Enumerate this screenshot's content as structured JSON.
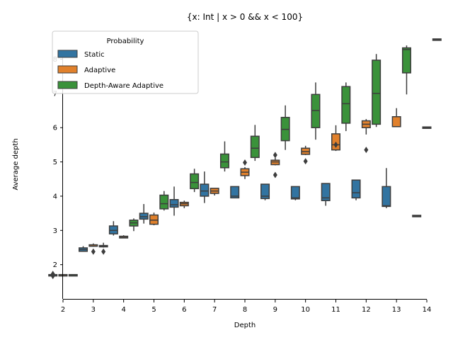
{
  "chart_data": {
    "type": "box",
    "title": "{x: Int | x > 0 && x < 100}",
    "xlabel": "Depth",
    "ylabel": "Average depth",
    "categories": [
      "2",
      "3",
      "4",
      "5",
      "6",
      "7",
      "8",
      "9",
      "10",
      "11",
      "12",
      "13",
      "14"
    ],
    "ylim": [
      1.0,
      8.9
    ],
    "yticks": [
      2,
      3,
      4,
      5,
      6,
      7,
      8
    ],
    "grid": false,
    "legend": {
      "title": "Probability",
      "placement": "top-left"
    },
    "series": [
      {
        "name": "Static",
        "color": "#3274a1",
        "boxes": [
          {
            "category": "2",
            "min": 1.68,
            "q1": 1.68,
            "median": 1.68,
            "q3": 1.69,
            "max": 1.69,
            "outliers": [
              1.73,
              1.67
            ]
          },
          {
            "category": "3",
            "min": 2.38,
            "q1": 2.39,
            "median": 2.44,
            "q3": 2.49,
            "max": 2.54,
            "outliers": []
          },
          {
            "category": "4",
            "min": 2.85,
            "q1": 2.9,
            "median": 3.0,
            "q3": 3.13,
            "max": 3.27,
            "outliers": []
          },
          {
            "category": "5",
            "min": 3.2,
            "q1": 3.33,
            "median": 3.4,
            "q3": 3.5,
            "max": 3.77,
            "outliers": []
          },
          {
            "category": "6",
            "min": 3.43,
            "q1": 3.68,
            "median": 3.75,
            "q3": 3.9,
            "max": 4.28,
            "outliers": []
          },
          {
            "category": "7",
            "min": 3.8,
            "q1": 4.0,
            "median": 4.15,
            "q3": 4.35,
            "max": 4.72,
            "outliers": []
          },
          {
            "category": "8",
            "min": 3.95,
            "q1": 3.95,
            "median": 4.0,
            "q3": 4.28,
            "max": 4.28,
            "outliers": []
          },
          {
            "category": "9",
            "min": 3.88,
            "q1": 3.93,
            "median": 4.0,
            "q3": 4.35,
            "max": 4.35,
            "outliers": []
          },
          {
            "category": "10",
            "min": 3.88,
            "q1": 3.92,
            "median": 3.95,
            "q3": 4.28,
            "max": 4.28,
            "outliers": []
          },
          {
            "category": "11",
            "min": 3.72,
            "q1": 3.87,
            "median": 3.95,
            "q3": 4.37,
            "max": 4.37,
            "outliers": []
          },
          {
            "category": "12",
            "min": 3.88,
            "q1": 3.95,
            "median": 4.1,
            "q3": 4.47,
            "max": 4.47,
            "outliers": []
          },
          {
            "category": "13",
            "min": 3.65,
            "q1": 3.7,
            "median": 3.72,
            "q3": 4.28,
            "max": 4.82,
            "outliers": []
          },
          {
            "category": "14",
            "min": 3.42,
            "q1": 3.42,
            "median": 3.42,
            "q3": 3.42,
            "max": 3.42,
            "outliers": []
          }
        ]
      },
      {
        "name": "Adaptive",
        "color": "#e1812c",
        "boxes": [
          {
            "category": "2",
            "min": 1.68,
            "q1": 1.68,
            "median": 1.68,
            "q3": 1.69,
            "max": 1.69,
            "outliers": []
          },
          {
            "category": "3",
            "min": 2.52,
            "q1": 2.53,
            "median": 2.54,
            "q3": 2.56,
            "max": 2.62,
            "outliers": [
              2.38
            ]
          },
          {
            "category": "4",
            "min": 2.77,
            "q1": 2.78,
            "median": 2.8,
            "q3": 2.83,
            "max": 2.86,
            "outliers": []
          },
          {
            "category": "5",
            "min": 3.15,
            "q1": 3.18,
            "median": 3.3,
            "q3": 3.45,
            "max": 3.52,
            "outliers": []
          },
          {
            "category": "6",
            "min": 3.65,
            "q1": 3.72,
            "median": 3.78,
            "q3": 3.82,
            "max": 3.87,
            "outliers": []
          },
          {
            "category": "7",
            "min": 4.02,
            "q1": 4.08,
            "median": 4.15,
            "q3": 4.23,
            "max": 4.23,
            "outliers": []
          },
          {
            "category": "8",
            "min": 4.5,
            "q1": 4.6,
            "median": 4.7,
            "q3": 4.8,
            "max": 4.85,
            "outliers": [
              4.98
            ]
          },
          {
            "category": "9",
            "min": 4.9,
            "q1": 4.92,
            "median": 5.0,
            "q3": 5.05,
            "max": 5.12,
            "outliers": [
              5.2,
              4.62
            ]
          },
          {
            "category": "10",
            "min": 5.2,
            "q1": 5.22,
            "median": 5.3,
            "q3": 5.4,
            "max": 5.47,
            "outliers": [
              5.02
            ]
          },
          {
            "category": "11",
            "min": 5.32,
            "q1": 5.35,
            "median": 5.5,
            "q3": 5.82,
            "max": 6.07,
            "outliers": [
              5.5
            ]
          },
          {
            "category": "12",
            "min": 5.8,
            "q1": 6.0,
            "median": 6.1,
            "q3": 6.2,
            "max": 6.25,
            "outliers": [
              5.35
            ]
          },
          {
            "category": "13",
            "min": 6.03,
            "q1": 6.03,
            "median": 6.03,
            "q3": 6.32,
            "max": 6.57,
            "outliers": []
          },
          {
            "category": "14",
            "min": 6.0,
            "q1": 6.0,
            "median": 6.0,
            "q3": 6.0,
            "max": 6.0,
            "outliers": []
          }
        ]
      },
      {
        "name": "Depth-Aware Adaptive",
        "color": "#3a923a",
        "boxes": [
          {
            "category": "2",
            "min": 1.68,
            "q1": 1.68,
            "median": 1.68,
            "q3": 1.69,
            "max": 1.69,
            "outliers": []
          },
          {
            "category": "3",
            "min": 2.5,
            "q1": 2.52,
            "median": 2.54,
            "q3": 2.56,
            "max": 2.64,
            "outliers": [
              2.38
            ]
          },
          {
            "category": "4",
            "min": 2.98,
            "q1": 3.13,
            "median": 3.22,
            "q3": 3.3,
            "max": 3.35,
            "outliers": []
          },
          {
            "category": "5",
            "min": 3.58,
            "q1": 3.63,
            "median": 3.78,
            "q3": 4.03,
            "max": 4.15,
            "outliers": []
          },
          {
            "category": "6",
            "min": 4.12,
            "q1": 4.22,
            "median": 4.4,
            "q3": 4.65,
            "max": 4.8,
            "outliers": []
          },
          {
            "category": "7",
            "min": 4.72,
            "q1": 4.83,
            "median": 5.0,
            "q3": 5.23,
            "max": 5.6,
            "outliers": []
          },
          {
            "category": "8",
            "min": 5.03,
            "q1": 5.13,
            "median": 5.4,
            "q3": 5.75,
            "max": 6.08,
            "outliers": []
          },
          {
            "category": "9",
            "min": 5.35,
            "q1": 5.62,
            "median": 5.95,
            "q3": 6.3,
            "max": 6.65,
            "outliers": []
          },
          {
            "category": "10",
            "min": 5.65,
            "q1": 6.0,
            "median": 6.5,
            "q3": 6.97,
            "max": 7.32,
            "outliers": []
          },
          {
            "category": "11",
            "min": 5.9,
            "q1": 6.13,
            "median": 6.7,
            "q3": 7.2,
            "max": 7.32,
            "outliers": []
          },
          {
            "category": "12",
            "min": 6.02,
            "q1": 6.1,
            "median": 7.0,
            "q3": 7.97,
            "max": 8.15,
            "outliers": []
          },
          {
            "category": "13",
            "min": 6.97,
            "q1": 7.6,
            "median": 8.28,
            "q3": 8.33,
            "max": 8.4,
            "outliers": []
          },
          {
            "category": "14",
            "min": 8.57,
            "q1": 8.57,
            "median": 8.57,
            "q3": 8.57,
            "max": 8.57,
            "outliers": []
          }
        ]
      }
    ]
  }
}
